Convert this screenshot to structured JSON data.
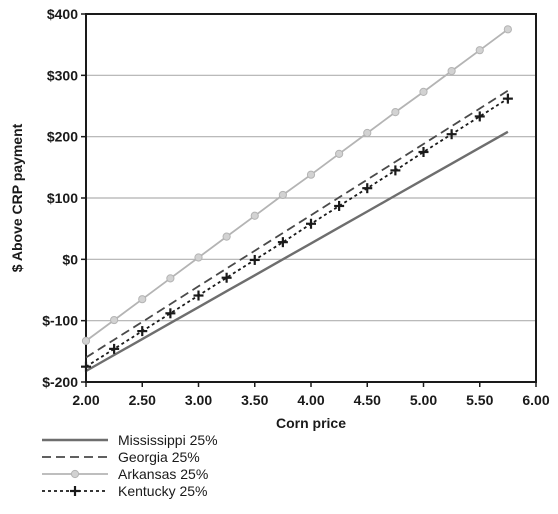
{
  "chart_data": {
    "type": "line",
    "xlabel": "Corn price",
    "ylabel": "$ Above CRP payment",
    "xlim": [
      2.0,
      6.0
    ],
    "ylim": [
      -200,
      400
    ],
    "x_ticks": [
      "2.00",
      "2.50",
      "3.00",
      "3.50",
      "4.00",
      "4.50",
      "5.00",
      "5.50",
      "6.00"
    ],
    "y_ticks": [
      "$-200",
      "$-100",
      "$0",
      "$100",
      "$200",
      "$300",
      "$400"
    ],
    "grid": "horizontal",
    "legend_position": "bottom-left",
    "x": [
      2.0,
      2.25,
      2.5,
      2.75,
      3.0,
      3.25,
      3.5,
      3.75,
      4.0,
      4.25,
      4.5,
      4.75,
      5.0,
      5.25,
      5.5,
      5.75
    ],
    "series": [
      {
        "name": "Mississippi 25%",
        "style": "solid",
        "marker": "none",
        "color": "#6e6e6e",
        "values": [
          -182,
          -156,
          -130,
          -104,
          -78,
          -52,
          -26,
          0,
          26,
          52,
          78,
          104,
          130,
          156,
          182,
          208
        ]
      },
      {
        "name": "Georgia 25%",
        "style": "dashed",
        "marker": "none",
        "color": "#4a4a4a",
        "values": [
          -160,
          -131,
          -102,
          -73,
          -44,
          -15,
          14,
          43,
          72,
          101,
          130,
          159,
          188,
          217,
          246,
          275
        ]
      },
      {
        "name": "Arkansas 25%",
        "style": "solid",
        "marker": "circle",
        "color": "#b4b4b4",
        "values": [
          -133,
          -99,
          -65,
          -31,
          3,
          37,
          71,
          105,
          138,
          172,
          206,
          240,
          273,
          307,
          341,
          375
        ]
      },
      {
        "name": "Kentucky 25%",
        "style": "dotted",
        "marker": "plus",
        "color": "#1a1a1a",
        "values": [
          -175,
          -146,
          -117,
          -88,
          -59,
          -30,
          -1,
          28,
          58,
          87,
          116,
          145,
          175,
          204,
          233,
          262
        ]
      }
    ]
  }
}
